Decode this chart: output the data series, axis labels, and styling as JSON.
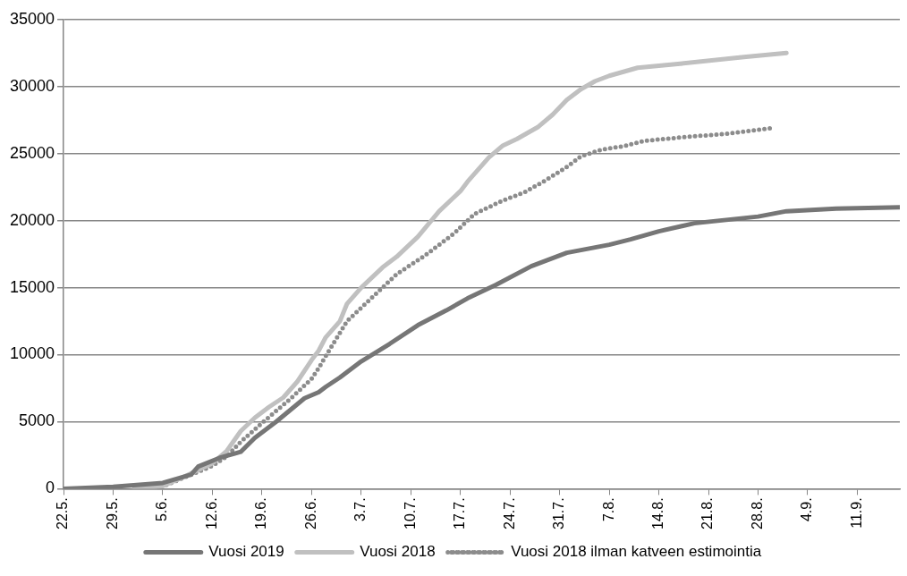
{
  "chart_data": {
    "type": "line",
    "xlim": [
      "--05-22",
      "--09-17"
    ],
    "xticks": [
      {
        "value": "--05-22",
        "label": "22.5."
      },
      {
        "value": "--05-29",
        "label": "29.5."
      },
      {
        "value": "--06-05",
        "label": "5.6."
      },
      {
        "value": "--06-12",
        "label": "12.6."
      },
      {
        "value": "--06-19",
        "label": "19.6."
      },
      {
        "value": "--06-26",
        "label": "26.6."
      },
      {
        "value": "--07-03",
        "label": "3.7."
      },
      {
        "value": "--07-10",
        "label": "10.7."
      },
      {
        "value": "--07-17",
        "label": "17.7."
      },
      {
        "value": "--07-24",
        "label": "24.7."
      },
      {
        "value": "--07-31",
        "label": "31.7."
      },
      {
        "value": "--08-07",
        "label": "7.8."
      },
      {
        "value": "--08-14",
        "label": "14.8."
      },
      {
        "value": "--08-21",
        "label": "21.8."
      },
      {
        "value": "--08-28",
        "label": "28.8."
      },
      {
        "value": "--09-04",
        "label": "4.9."
      },
      {
        "value": "--09-11",
        "label": "11.9."
      }
    ],
    "ylim": [
      0,
      35000
    ],
    "yticks": [
      0,
      5000,
      10000,
      15000,
      20000,
      25000,
      30000,
      35000
    ],
    "grid": "y",
    "legend": "bottom",
    "marker": "none",
    "series": [
      {
        "name": "Vuosi 2019",
        "color": "#767676",
        "line_style": "solid",
        "x": [
          "--05-22",
          "--05-29",
          "--06-05",
          "--06-09",
          "--06-10",
          "--06-13",
          "--06-16",
          "--06-18",
          "--06-21",
          "--06-25",
          "--06-27",
          "--06-28",
          "--06-30",
          "--07-03",
          "--07-07",
          "--07-11",
          "--07-15",
          "--07-18",
          "--07-22",
          "--07-27",
          "--08-01",
          "--08-07",
          "--08-10",
          "--08-14",
          "--08-19",
          "--08-28",
          "--09-01",
          "--09-08",
          "--09-17"
        ],
        "values": [
          0,
          150,
          430,
          1050,
          1650,
          2300,
          2750,
          3800,
          5000,
          6750,
          7200,
          7600,
          8300,
          9500,
          10800,
          12200,
          13300,
          14200,
          15200,
          16600,
          17600,
          18200,
          18600,
          19200,
          19800,
          20300,
          20700,
          20900,
          21000
        ]
      },
      {
        "name": "Vuosi 2018",
        "color": "#c0c0c0",
        "line_style": "solid",
        "x": [
          "--06-01",
          "--06-05",
          "--06-08",
          "--06-12",
          "--06-14",
          "--06-16",
          "--06-18",
          "--06-20",
          "--06-22",
          "--06-24",
          "--06-26",
          "--06-27",
          "--06-28",
          "--06-30",
          "--07-01",
          "--07-03",
          "--07-06",
          "--07-08",
          "--07-11",
          "--07-14",
          "--07-17",
          "--07-18",
          "--07-21",
          "--07-23",
          "--07-25",
          "--07-28",
          "--07-30",
          "--08-01",
          "--08-03",
          "--08-05",
          "--08-07",
          "--08-11",
          "--08-17",
          "--08-26",
          "--09-01"
        ],
        "values": [
          0,
          190,
          900,
          1900,
          2800,
          4300,
          5300,
          6100,
          6800,
          8000,
          9600,
          10300,
          11300,
          12500,
          13800,
          15000,
          16500,
          17300,
          18800,
          20700,
          22200,
          22900,
          24700,
          25600,
          26100,
          27000,
          27900,
          29000,
          29800,
          30400,
          30800,
          31400,
          31700,
          32200,
          32500
        ]
      },
      {
        "name": "Vuosi 2018 ilman katveen estimointia",
        "color": "#8c8c8c",
        "line_style": "dotted",
        "x": [
          "--06-01",
          "--06-05",
          "--06-09",
          "--06-12",
          "--06-14",
          "--06-16",
          "--06-19",
          "--06-21",
          "--06-23",
          "--06-26",
          "--06-27",
          "--06-28",
          "--07-01",
          "--07-05",
          "--07-08",
          "--07-12",
          "--07-16",
          "--07-19",
          "--07-23",
          "--07-26",
          "--07-29",
          "--08-01",
          "--08-03",
          "--08-06",
          "--08-09",
          "--08-12",
          "--08-17",
          "--08-24",
          "--08-30"
        ],
        "values": [
          0,
          170,
          1050,
          1700,
          2400,
          3500,
          4900,
          5800,
          6700,
          8200,
          9000,
          9900,
          12500,
          14500,
          16000,
          17400,
          19000,
          20500,
          21500,
          22100,
          23000,
          24000,
          24800,
          25300,
          25550,
          25950,
          26200,
          26500,
          26900
        ]
      }
    ]
  }
}
